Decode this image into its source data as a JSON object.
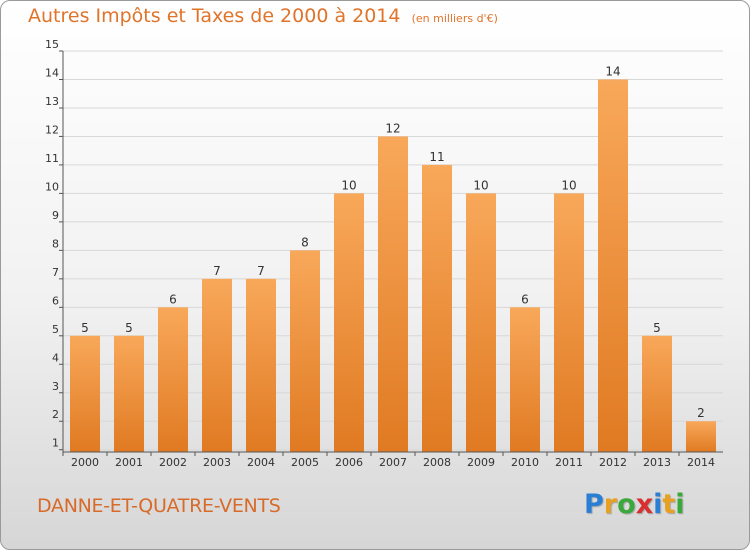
{
  "title": "Autres Impôts et Taxes de 2000 à 2014",
  "units": "(en milliers d'€)",
  "commune": "DANNE-ET-QUATRE-VENTS",
  "logo": {
    "text": "Proxiti",
    "letters": [
      {
        "char": "P",
        "color": "#2a7fd4"
      },
      {
        "char": "r",
        "color": "#e8a020"
      },
      {
        "char": "o",
        "color": "#3aa83a"
      },
      {
        "char": "x",
        "color": "#d83030"
      },
      {
        "char": "i",
        "color": "#2a7fd4"
      },
      {
        "char": "t",
        "color": "#e8a020"
      },
      {
        "char": "i",
        "color": "#3aa83a"
      }
    ]
  },
  "colors": {
    "accent": "#e0742a",
    "bar_top": "#f8a85a",
    "bar_bottom": "#e07a22",
    "grid": "#d8d8d8"
  },
  "chart_data": {
    "type": "bar",
    "categories": [
      "2000",
      "2001",
      "2002",
      "2003",
      "2004",
      "2005",
      "2006",
      "2007",
      "2008",
      "2009",
      "2010",
      "2011",
      "2012",
      "2013",
      "2014"
    ],
    "values": [
      5,
      5,
      6,
      7,
      7,
      8,
      10,
      12,
      11,
      10,
      6,
      10,
      14,
      5,
      2
    ],
    "ylim": [
      1,
      15
    ],
    "yticks": [
      1,
      2,
      3,
      4,
      5,
      6,
      7,
      8,
      9,
      10,
      11,
      12,
      13,
      14,
      15
    ],
    "grid": true
  }
}
